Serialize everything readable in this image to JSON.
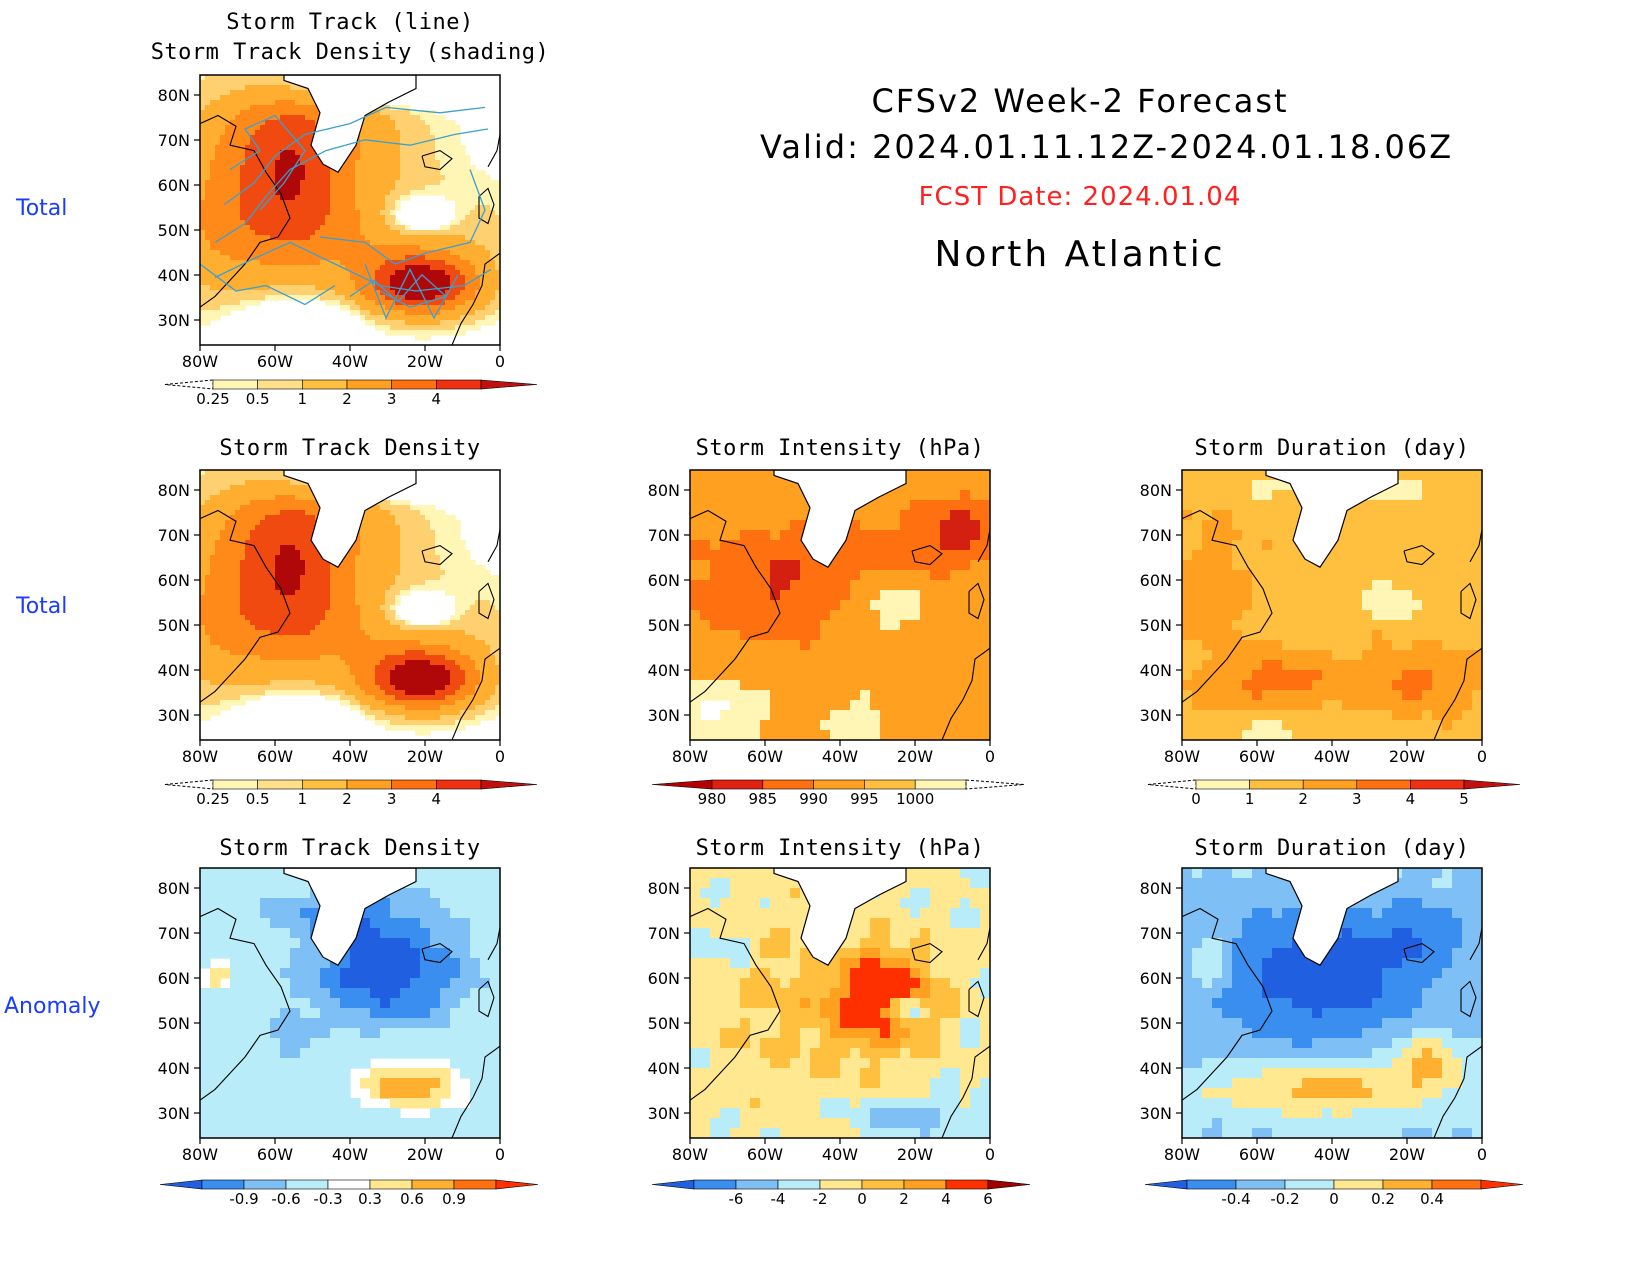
{
  "header": {
    "title": "CFSv2 Week-2 Forecast",
    "valid": "Valid: 2024.01.11.12Z-2024.01.18.06Z",
    "fcst_date": "FCST Date: 2024.01.04",
    "region": "North Atlantic",
    "fcst_color": "#ff2020"
  },
  "row_labels": [
    "Total",
    "Total",
    "Anomaly"
  ],
  "axes": {
    "lat_ticks": [
      "80N",
      "70N",
      "60N",
      "50N",
      "40N",
      "30N"
    ],
    "lon_ticks": [
      "80W",
      "60W",
      "40W",
      "20W",
      "0"
    ]
  },
  "panels": [
    {
      "id": "p1",
      "title": [
        "Storm Track (line)",
        "Storm Track Density (shading)"
      ],
      "scheme": "density_lines",
      "colorbar": "density"
    },
    {
      "id": "p2",
      "title": [
        "Storm Track Density"
      ],
      "scheme": "density",
      "colorbar": "density"
    },
    {
      "id": "p3",
      "title": [
        "Storm Intensity (hPa)"
      ],
      "scheme": "intensity",
      "colorbar": "intensity"
    },
    {
      "id": "p4",
      "title": [
        "Storm Duration (day)"
      ],
      "scheme": "duration",
      "colorbar": "duration"
    },
    {
      "id": "p5",
      "title": [
        "Storm Track Density"
      ],
      "scheme": "anom_density",
      "colorbar": "anom_density"
    },
    {
      "id": "p6",
      "title": [
        "Storm Intensity (hPa)"
      ],
      "scheme": "anom_intensity",
      "colorbar": "anom_intensity"
    },
    {
      "id": "p7",
      "title": [
        "Storm Duration (day)"
      ],
      "scheme": "anom_duration",
      "colorbar": "anom_duration"
    }
  ],
  "colorbars": {
    "density": {
      "labels": [
        "0.25",
        "0.5",
        "1",
        "2",
        "3",
        "4"
      ],
      "colors": [
        "#fff5b4",
        "#ffe08a",
        "#ffc040",
        "#ffa020",
        "#ff7010",
        "#f03010",
        "#c01010"
      ]
    },
    "intensity": {
      "labels": [
        "980",
        "985",
        "990",
        "995",
        "1000"
      ],
      "colors": [
        "#b40000",
        "#e02010",
        "#ff7010",
        "#ffa020",
        "#ffc040",
        "#fff5b4"
      ]
    },
    "duration": {
      "labels": [
        "0",
        "1",
        "2",
        "3",
        "4",
        "5"
      ],
      "colors": [
        "#fff5b4",
        "#ffc040",
        "#ffa020",
        "#ff7010",
        "#f03010",
        "#c01010"
      ]
    },
    "anom_density": {
      "labels": [
        "-0.9",
        "-0.6",
        "-0.3",
        "0.3",
        "0.6",
        "0.9"
      ],
      "colors": [
        "#1f5fe0",
        "#3a8ef0",
        "#7ec0f5",
        "#b8ecf8",
        "#ffffff",
        "#ffe890",
        "#ffb030",
        "#ff7010",
        "#ff3000"
      ]
    },
    "anom_intensity": {
      "labels": [
        "-6",
        "-4",
        "-2",
        "0",
        "2",
        "4",
        "6"
      ],
      "colors": [
        "#1f5fe0",
        "#3a8ef0",
        "#7ec0f5",
        "#b8ecf8",
        "#ffe890",
        "#ffc040",
        "#ffa020",
        "#ff3000",
        "#a00000"
      ]
    },
    "anom_duration": {
      "labels": [
        "-0.4",
        "-0.2",
        "0",
        "0.2",
        "0.4"
      ],
      "colors": [
        "#1f5fe0",
        "#3a8ef0",
        "#7ec0f5",
        "#b8ecf8",
        "#ffe890",
        "#ffb030",
        "#ff7010",
        "#ff3000"
      ]
    }
  }
}
